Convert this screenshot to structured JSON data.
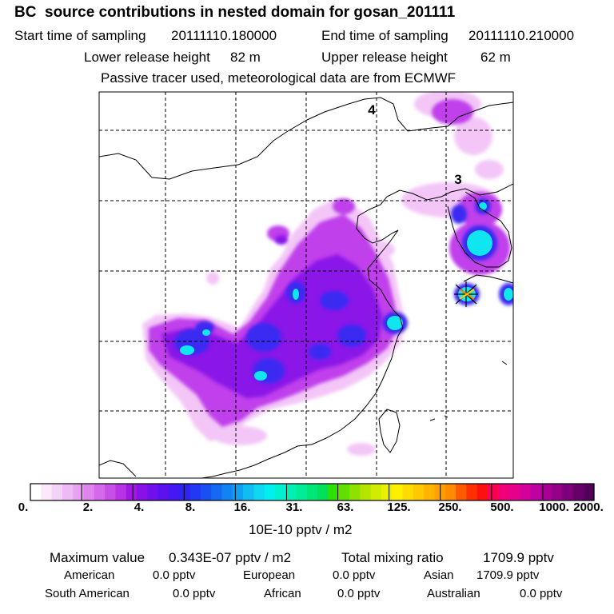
{
  "title": "BC  source contributions in nested domain for gosan_201111",
  "sampling": {
    "start_label": "Start time of sampling",
    "start_value": "20111110.180000",
    "end_label": "End time of sampling",
    "end_value": "20111110.210000"
  },
  "release": {
    "lower_label": "Lower release height",
    "lower_value": "82 m",
    "upper_label": "Upper release height",
    "upper_value": "62 m"
  },
  "tracer_note": "Passive tracer used, meteorological data are from ECMWF",
  "map": {
    "track_labels": [
      "4",
      "3"
    ],
    "colors": {
      "frame": "#000000",
      "grid": "#000000",
      "coast": "#000000"
    }
  },
  "colorbar": {
    "ticks": [
      "0.",
      "2.",
      "4.",
      "8.",
      "16.",
      "31.",
      "63.",
      "125.",
      "250.",
      "500.",
      "1000.",
      "2000."
    ],
    "units": "10E-10 pptv / m2",
    "colors": [
      "#ffffff",
      "#fbe8fb",
      "#f5d2f8",
      "#eebaf5",
      "#e7a2f1",
      "#de86ee",
      "#d46aeb",
      "#c84ee8",
      "#b832e6",
      "#a018e4",
      "#8a10e8",
      "#7010ec",
      "#5a12ee",
      "#4418f0",
      "#3024f2",
      "#2238f2",
      "#1a50f2",
      "#1668f2",
      "#1284f2",
      "#10a0f2",
      "#10bcf2",
      "#10d8f2",
      "#00f0f0",
      "#00f0d2",
      "#00f0b4",
      "#00ec96",
      "#00e678",
      "#00e05a",
      "#30e000",
      "#60e000",
      "#90e000",
      "#b4e400",
      "#d0ec00",
      "#e8f000",
      "#fff000",
      "#ffdc00",
      "#ffc800",
      "#ffb400",
      "#ffa000",
      "#ff8c00",
      "#ff5a00",
      "#ff3000",
      "#ff1010",
      "#ff0050",
      "#f00078",
      "#e6008c",
      "#d4009a",
      "#c000a0",
      "#aa0096",
      "#940088",
      "#7e007a",
      "#68006a",
      "#52005a"
    ]
  },
  "summary": {
    "max_label": "Maximum value",
    "max_value": "0.343E-07 pptv / m2",
    "total_label": "Total mixing ratio",
    "total_value": "1709.9 pptv",
    "regions": [
      {
        "name": "American",
        "value": "0.0 pptv"
      },
      {
        "name": "European",
        "value": "0.0 pptv"
      },
      {
        "name": "Asian",
        "value": "1709.9 pptv"
      },
      {
        "name": "South American",
        "value": "0.0 pptv"
      },
      {
        "name": "African",
        "value": "0.0 pptv"
      },
      {
        "name": "Australian",
        "value": "0.0 pptv"
      }
    ]
  }
}
